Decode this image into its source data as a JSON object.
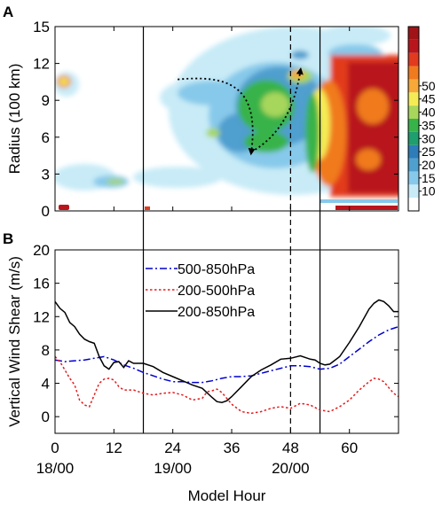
{
  "chart_data": [
    {
      "panel": "A",
      "type": "heatmap",
      "ylabel": "Radius (100 km)",
      "ylim": [
        0,
        15
      ],
      "yticks": [
        0,
        3,
        6,
        9,
        12,
        15
      ],
      "xlim": [
        0,
        70
      ],
      "colorbar": {
        "ticks": [
          10,
          15,
          20,
          25,
          30,
          35,
          40,
          45,
          50
        ],
        "colors": [
          "#ffffff",
          "#c8ebf7",
          "#87c9ea",
          "#4f9fcf",
          "#2e7db8",
          "#1f9e6e",
          "#38b34a",
          "#a7d65b",
          "#f5ec55",
          "#f6a938",
          "#f07a1e",
          "#e23a1f",
          "#b8161c",
          "#a01418"
        ]
      },
      "vertical_lines": [
        {
          "x": 18,
          "style": "solid"
        },
        {
          "x": 48,
          "style": "dashed"
        },
        {
          "x": 54,
          "style": "solid"
        }
      ],
      "annotations": [
        {
          "type": "dotted-arrow",
          "from": [
            25,
            10.7
          ],
          "to": [
            40,
            4.8
          ]
        },
        {
          "type": "dotted-arrow",
          "from": [
            40,
            4.8
          ],
          "to": [
            50,
            11.4
          ]
        }
      ]
    },
    {
      "panel": "B",
      "type": "line",
      "ylabel": "Vertical Wind Shear (m/s)",
      "xlabel": "Model Hour",
      "xlim": [
        0,
        70
      ],
      "ylim": [
        -2,
        20
      ],
      "xticks": [
        0,
        12,
        24,
        36,
        48,
        60
      ],
      "yticks": [
        0,
        4,
        8,
        12,
        16,
        20
      ],
      "date_labels": [
        {
          "x": 0,
          "label": "18/00"
        },
        {
          "x": 24,
          "label": "19/00"
        },
        {
          "x": 48,
          "label": "20/00"
        }
      ],
      "legend_position": "top-center",
      "series": [
        {
          "name": "500-850hPa",
          "color": "#0000cc",
          "style": "dash-dot",
          "x": [
            0,
            2,
            4,
            6,
            8,
            10,
            12,
            14,
            16,
            18,
            20,
            22,
            24,
            26,
            28,
            30,
            32,
            34,
            36,
            38,
            40,
            42,
            44,
            46,
            48,
            50,
            52,
            54,
            56,
            58,
            60,
            62,
            64,
            66,
            68,
            70
          ],
          "y": [
            6.8,
            6.6,
            6.7,
            6.8,
            7.0,
            7.2,
            6.8,
            6.2,
            5.8,
            5.3,
            4.9,
            4.5,
            4.2,
            4.2,
            4.1,
            4.1,
            4.3,
            4.6,
            4.8,
            4.8,
            4.9,
            5.2,
            5.5,
            5.8,
            6.1,
            6.1,
            6.0,
            5.7,
            5.8,
            6.3,
            7.2,
            8.1,
            9.0,
            9.8,
            10.4,
            10.8
          ]
        },
        {
          "name": "200-500hPa",
          "color": "#e41a1c",
          "style": "dotted",
          "x": [
            0,
            1,
            2,
            3,
            4,
            5,
            6,
            7,
            8,
            9,
            10,
            11,
            12,
            13,
            14,
            16,
            18,
            20,
            22,
            24,
            26,
            28,
            30,
            31,
            32,
            33,
            34,
            36,
            38,
            40,
            42,
            44,
            46,
            48,
            50,
            52,
            54,
            56,
            58,
            60,
            62,
            64,
            65,
            66,
            67,
            68,
            69,
            70
          ],
          "y": [
            7.2,
            6.6,
            5.6,
            4.6,
            3.8,
            2.0,
            1.4,
            1.2,
            2.6,
            4.0,
            4.5,
            4.6,
            4.4,
            3.6,
            3.2,
            3.2,
            2.8,
            2.6,
            2.8,
            2.9,
            2.6,
            2.0,
            2.2,
            3.0,
            3.1,
            3.3,
            2.9,
            1.5,
            0.6,
            0.4,
            0.6,
            1.0,
            1.2,
            1.0,
            1.6,
            1.4,
            0.8,
            0.6,
            1.2,
            2.0,
            3.2,
            4.2,
            4.6,
            4.5,
            4.2,
            3.5,
            2.8,
            2.4
          ]
        },
        {
          "name": "200-850hPa",
          "color": "#000000",
          "style": "solid",
          "x": [
            0,
            1,
            2,
            3,
            4,
            5,
            6,
            7,
            8,
            9,
            10,
            11,
            12,
            13,
            14,
            15,
            16,
            18,
            20,
            22,
            24,
            26,
            28,
            30,
            32,
            33,
            34,
            35,
            36,
            38,
            40,
            42,
            44,
            46,
            48,
            50,
            52,
            53,
            54,
            55,
            56,
            58,
            60,
            62,
            64,
            65,
            66,
            67,
            68,
            69,
            70
          ],
          "y": [
            13.8,
            13.0,
            12.5,
            11.3,
            10.8,
            9.9,
            9.3,
            9.0,
            8.8,
            7.2,
            6.1,
            5.7,
            6.5,
            6.6,
            5.9,
            6.7,
            6.4,
            6.4,
            6.0,
            5.3,
            4.8,
            4.3,
            3.8,
            3.4,
            2.3,
            1.8,
            1.7,
            1.9,
            2.4,
            3.6,
            4.8,
            5.6,
            6.2,
            6.9,
            7.0,
            7.3,
            6.9,
            6.8,
            6.4,
            6.2,
            6.3,
            7.2,
            8.9,
            10.8,
            12.9,
            13.6,
            14.0,
            13.8,
            13.3,
            12.6,
            12.6
          ]
        }
      ]
    }
  ],
  "labels": {
    "panel_a": "A",
    "panel_b": "B"
  }
}
